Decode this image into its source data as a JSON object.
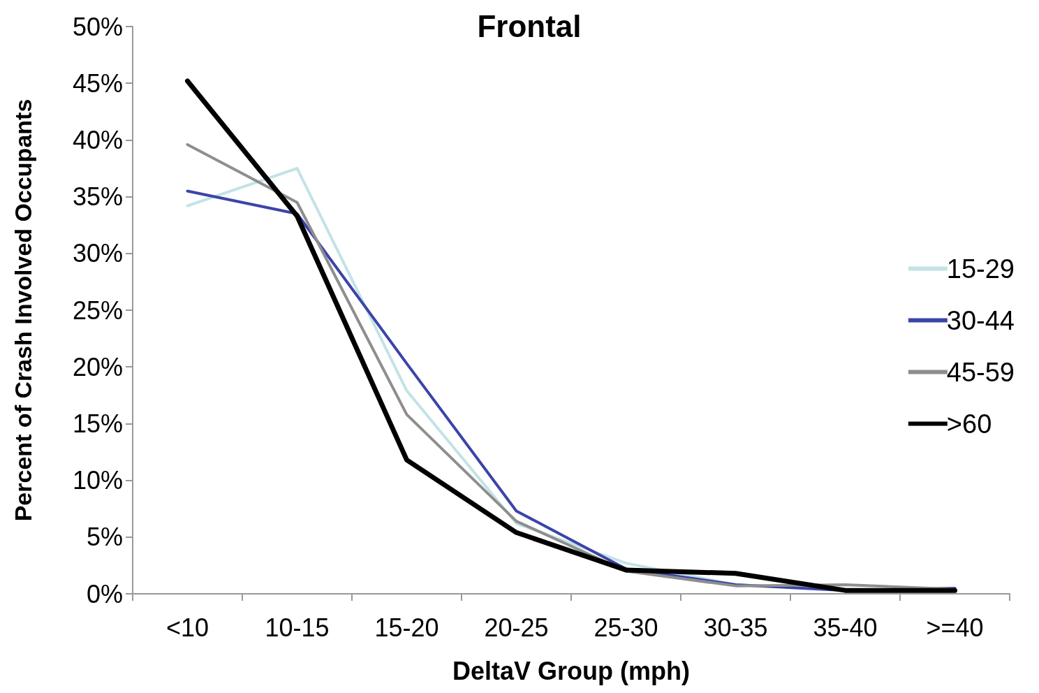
{
  "chart_data": {
    "type": "line",
    "title": "Frontal",
    "xlabel": "DeltaV Group (mph)",
    "ylabel": "Percent of Crash Involved Occupants",
    "categories": [
      "<10",
      "10-15",
      "15-20",
      "20-25",
      "25-30",
      "30-35",
      "35-40",
      ">=40"
    ],
    "series": [
      {
        "name": "15-29",
        "color": "#c3e3e6",
        "values": [
          34.2,
          37.5,
          17.9,
          6.2,
          2.7,
          0.8,
          0.4,
          null
        ]
      },
      {
        "name": "30-44",
        "color": "#3b44a8",
        "values": [
          35.5,
          33.5,
          20.3,
          7.3,
          2.2,
          0.8,
          0.3,
          0.5
        ]
      },
      {
        "name": "45-59",
        "color": "#8e8e8e",
        "values": [
          39.6,
          34.5,
          15.8,
          6.4,
          2.0,
          0.7,
          0.8,
          0.4
        ]
      },
      {
        "name": ">60",
        "color": "#000000",
        "values": [
          45.2,
          33.3,
          11.8,
          5.4,
          2.1,
          1.8,
          0.3,
          0.3
        ]
      }
    ],
    "ylim": [
      0,
      50
    ],
    "yticks": [
      {
        "value": 0,
        "label": "0%"
      },
      {
        "value": 5,
        "label": "5%"
      },
      {
        "value": 10,
        "label": "10%"
      },
      {
        "value": 15,
        "label": "15%"
      },
      {
        "value": 20,
        "label": "20%"
      },
      {
        "value": 25,
        "label": "25%"
      },
      {
        "value": 30,
        "label": "30%"
      },
      {
        "value": 35,
        "label": "35%"
      },
      {
        "value": 40,
        "label": "40%"
      },
      {
        "value": 45,
        "label": "45%"
      },
      {
        "value": 50,
        "label": "50%"
      }
    ],
    "grid": false,
    "legend": "right",
    "marker": "none",
    "line_style": "solid"
  }
}
